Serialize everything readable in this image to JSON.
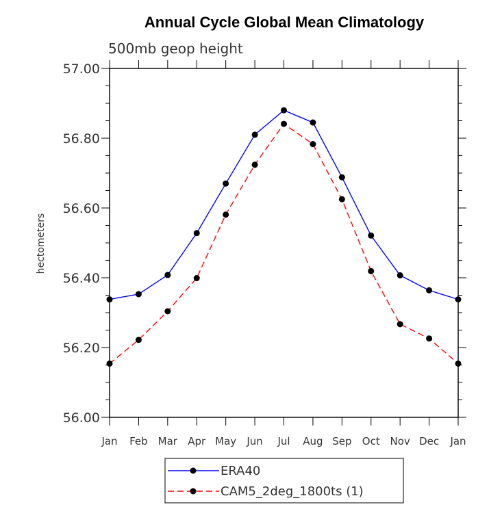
{
  "chart_data": {
    "type": "line",
    "title": "Annual Cycle Global Mean Climatology",
    "subtitle": "500mb geop height",
    "ylabel": "hectometers",
    "xlabel": "",
    "categories": [
      "Jan",
      "Feb",
      "Mar",
      "Apr",
      "May",
      "Jun",
      "Jul",
      "Aug",
      "Sep",
      "Oct",
      "Nov",
      "Dec",
      "Jan"
    ],
    "ylim": [
      56.0,
      57.0
    ],
    "yticks": [
      "56.00",
      "56.20",
      "56.40",
      "56.60",
      "56.80",
      "57.00"
    ],
    "grid": false,
    "legend_position": "bottom-center",
    "series": [
      {
        "name": "ERA40",
        "color": "#0000ff",
        "dash": "solid",
        "marker": "filled-circle",
        "values": [
          56.338,
          56.353,
          56.408,
          56.528,
          56.67,
          56.81,
          56.88,
          56.845,
          56.688,
          56.521,
          56.407,
          56.364,
          56.338
        ]
      },
      {
        "name": "CAM5_2deg_1800ts (1)",
        "color": "#ff0000",
        "dash": "dashed",
        "marker": "filled-circle",
        "values": [
          56.154,
          56.222,
          56.304,
          56.399,
          56.581,
          56.724,
          56.841,
          56.783,
          56.625,
          56.419,
          56.267,
          56.226,
          56.154
        ]
      }
    ]
  }
}
